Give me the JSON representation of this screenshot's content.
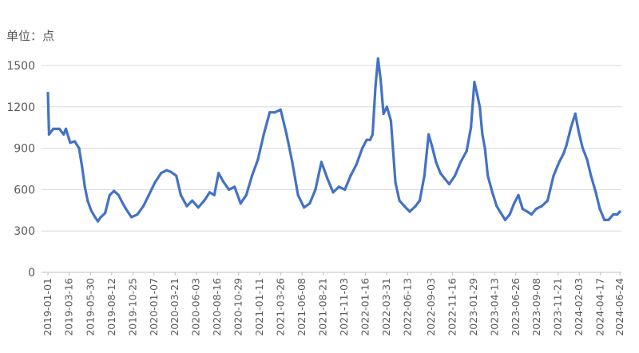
{
  "unit_label": "单位：点",
  "chart_data": {
    "type": "line",
    "title": "",
    "ylabel": "",
    "xlabel": "",
    "ylim": [
      0,
      1500
    ],
    "yticks": [
      0,
      300,
      600,
      900,
      1200,
      1500
    ],
    "grid": "horizontal",
    "legend": "none",
    "line_color": "#4472C4",
    "x_tick_labels": [
      "2019-01-01",
      "2019-03-16",
      "2019-05-30",
      "2019-08-12",
      "2019-10-25",
      "2020-01-07",
      "2020-03-21",
      "2020-06-03",
      "2020-08-16",
      "2020-10-29",
      "2021-01-11",
      "2021-03-26",
      "2021-06-08",
      "2021-08-21",
      "2021-11-03",
      "2022-01-16",
      "2022-03-31",
      "2022-06-13",
      "2022-09-03",
      "2022-11-16",
      "2023-01-29",
      "2023-04-13",
      "2023-06-26",
      "2023-09-08",
      "2023-11-21",
      "2024-02-03",
      "2024-04-17",
      "2024-06-24"
    ],
    "series": [
      {
        "name": "",
        "x": [
          "2019-01-01",
          "2019-01-05",
          "2019-01-20",
          "2019-02-10",
          "2019-02-25",
          "2019-03-05",
          "2019-03-20",
          "2019-04-05",
          "2019-04-20",
          "2019-05-01",
          "2019-05-10",
          "2019-05-20",
          "2019-06-01",
          "2019-06-15",
          "2019-06-25",
          "2019-07-05",
          "2019-07-20",
          "2019-08-05",
          "2019-08-20",
          "2019-09-05",
          "2019-09-20",
          "2019-10-01",
          "2019-10-20",
          "2019-11-10",
          "2019-12-01",
          "2019-12-20",
          "2020-01-10",
          "2020-02-01",
          "2020-02-20",
          "2020-03-05",
          "2020-03-25",
          "2020-04-10",
          "2020-05-01",
          "2020-05-20",
          "2020-06-10",
          "2020-07-01",
          "2020-07-20",
          "2020-08-05",
          "2020-08-20",
          "2020-09-05",
          "2020-09-25",
          "2020-10-15",
          "2020-11-05",
          "2020-11-25",
          "2020-12-15",
          "2021-01-05",
          "2021-01-25",
          "2021-02-15",
          "2021-03-05",
          "2021-03-25",
          "2021-04-15",
          "2021-05-05",
          "2021-05-25",
          "2021-06-15",
          "2021-07-05",
          "2021-07-25",
          "2021-08-15",
          "2021-09-05",
          "2021-09-25",
          "2021-10-15",
          "2021-11-05",
          "2021-11-25",
          "2021-12-15",
          "2022-01-05",
          "2022-01-20",
          "2022-02-01",
          "2022-02-10",
          "2022-02-20",
          "2022-03-01",
          "2022-03-10",
          "2022-03-20",
          "2022-04-01",
          "2022-04-15",
          "2022-05-01",
          "2022-05-15",
          "2022-06-01",
          "2022-06-20",
          "2022-07-10",
          "2022-07-25",
          "2022-08-10",
          "2022-08-25",
          "2022-09-05",
          "2022-09-20",
          "2022-10-05",
          "2022-10-20",
          "2022-11-05",
          "2022-11-25",
          "2022-12-15",
          "2023-01-05",
          "2023-01-20",
          "2023-02-01",
          "2023-02-10",
          "2023-02-20",
          "2023-03-01",
          "2023-03-10",
          "2023-03-20",
          "2023-04-05",
          "2023-04-20",
          "2023-05-05",
          "2023-05-20",
          "2023-06-05",
          "2023-06-20",
          "2023-07-05",
          "2023-07-20",
          "2023-08-05",
          "2023-08-20",
          "2023-09-05",
          "2023-09-25",
          "2023-10-15",
          "2023-11-05",
          "2023-11-25",
          "2023-12-10",
          "2023-12-20",
          "2024-01-05",
          "2024-01-20",
          "2024-02-01",
          "2024-02-15",
          "2024-03-01",
          "2024-03-15",
          "2024-04-01",
          "2024-04-15",
          "2024-05-01",
          "2024-05-15",
          "2024-06-01",
          "2024-06-15",
          "2024-06-24"
        ],
        "values": [
          1300,
          1000,
          1040,
          1040,
          1000,
          1040,
          940,
          950,
          900,
          760,
          620,
          520,
          450,
          400,
          370,
          400,
          430,
          560,
          590,
          560,
          500,
          460,
          400,
          420,
          480,
          560,
          650,
          720,
          740,
          730,
          700,
          560,
          480,
          520,
          470,
          520,
          580,
          560,
          720,
          660,
          600,
          620,
          500,
          560,
          700,
          820,
          1000,
          1160,
          1160,
          1180,
          1000,
          800,
          560,
          470,
          500,
          600,
          800,
          680,
          580,
          620,
          600,
          700,
          780,
          900,
          960,
          960,
          1000,
          1350,
          1550,
          1400,
          1150,
          1200,
          1100,
          650,
          520,
          480,
          440,
          480,
          520,
          700,
          1000,
          920,
          800,
          720,
          680,
          640,
          700,
          800,
          880,
          1050,
          1380,
          1300,
          1200,
          1000,
          900,
          700,
          580,
          480,
          430,
          380,
          420,
          500,
          560,
          460,
          440,
          420,
          460,
          480,
          520,
          700,
          800,
          860,
          920,
          1050,
          1150,
          1020,
          900,
          820,
          700,
          580,
          460,
          380,
          380,
          420,
          420,
          440
        ]
      }
    ]
  }
}
